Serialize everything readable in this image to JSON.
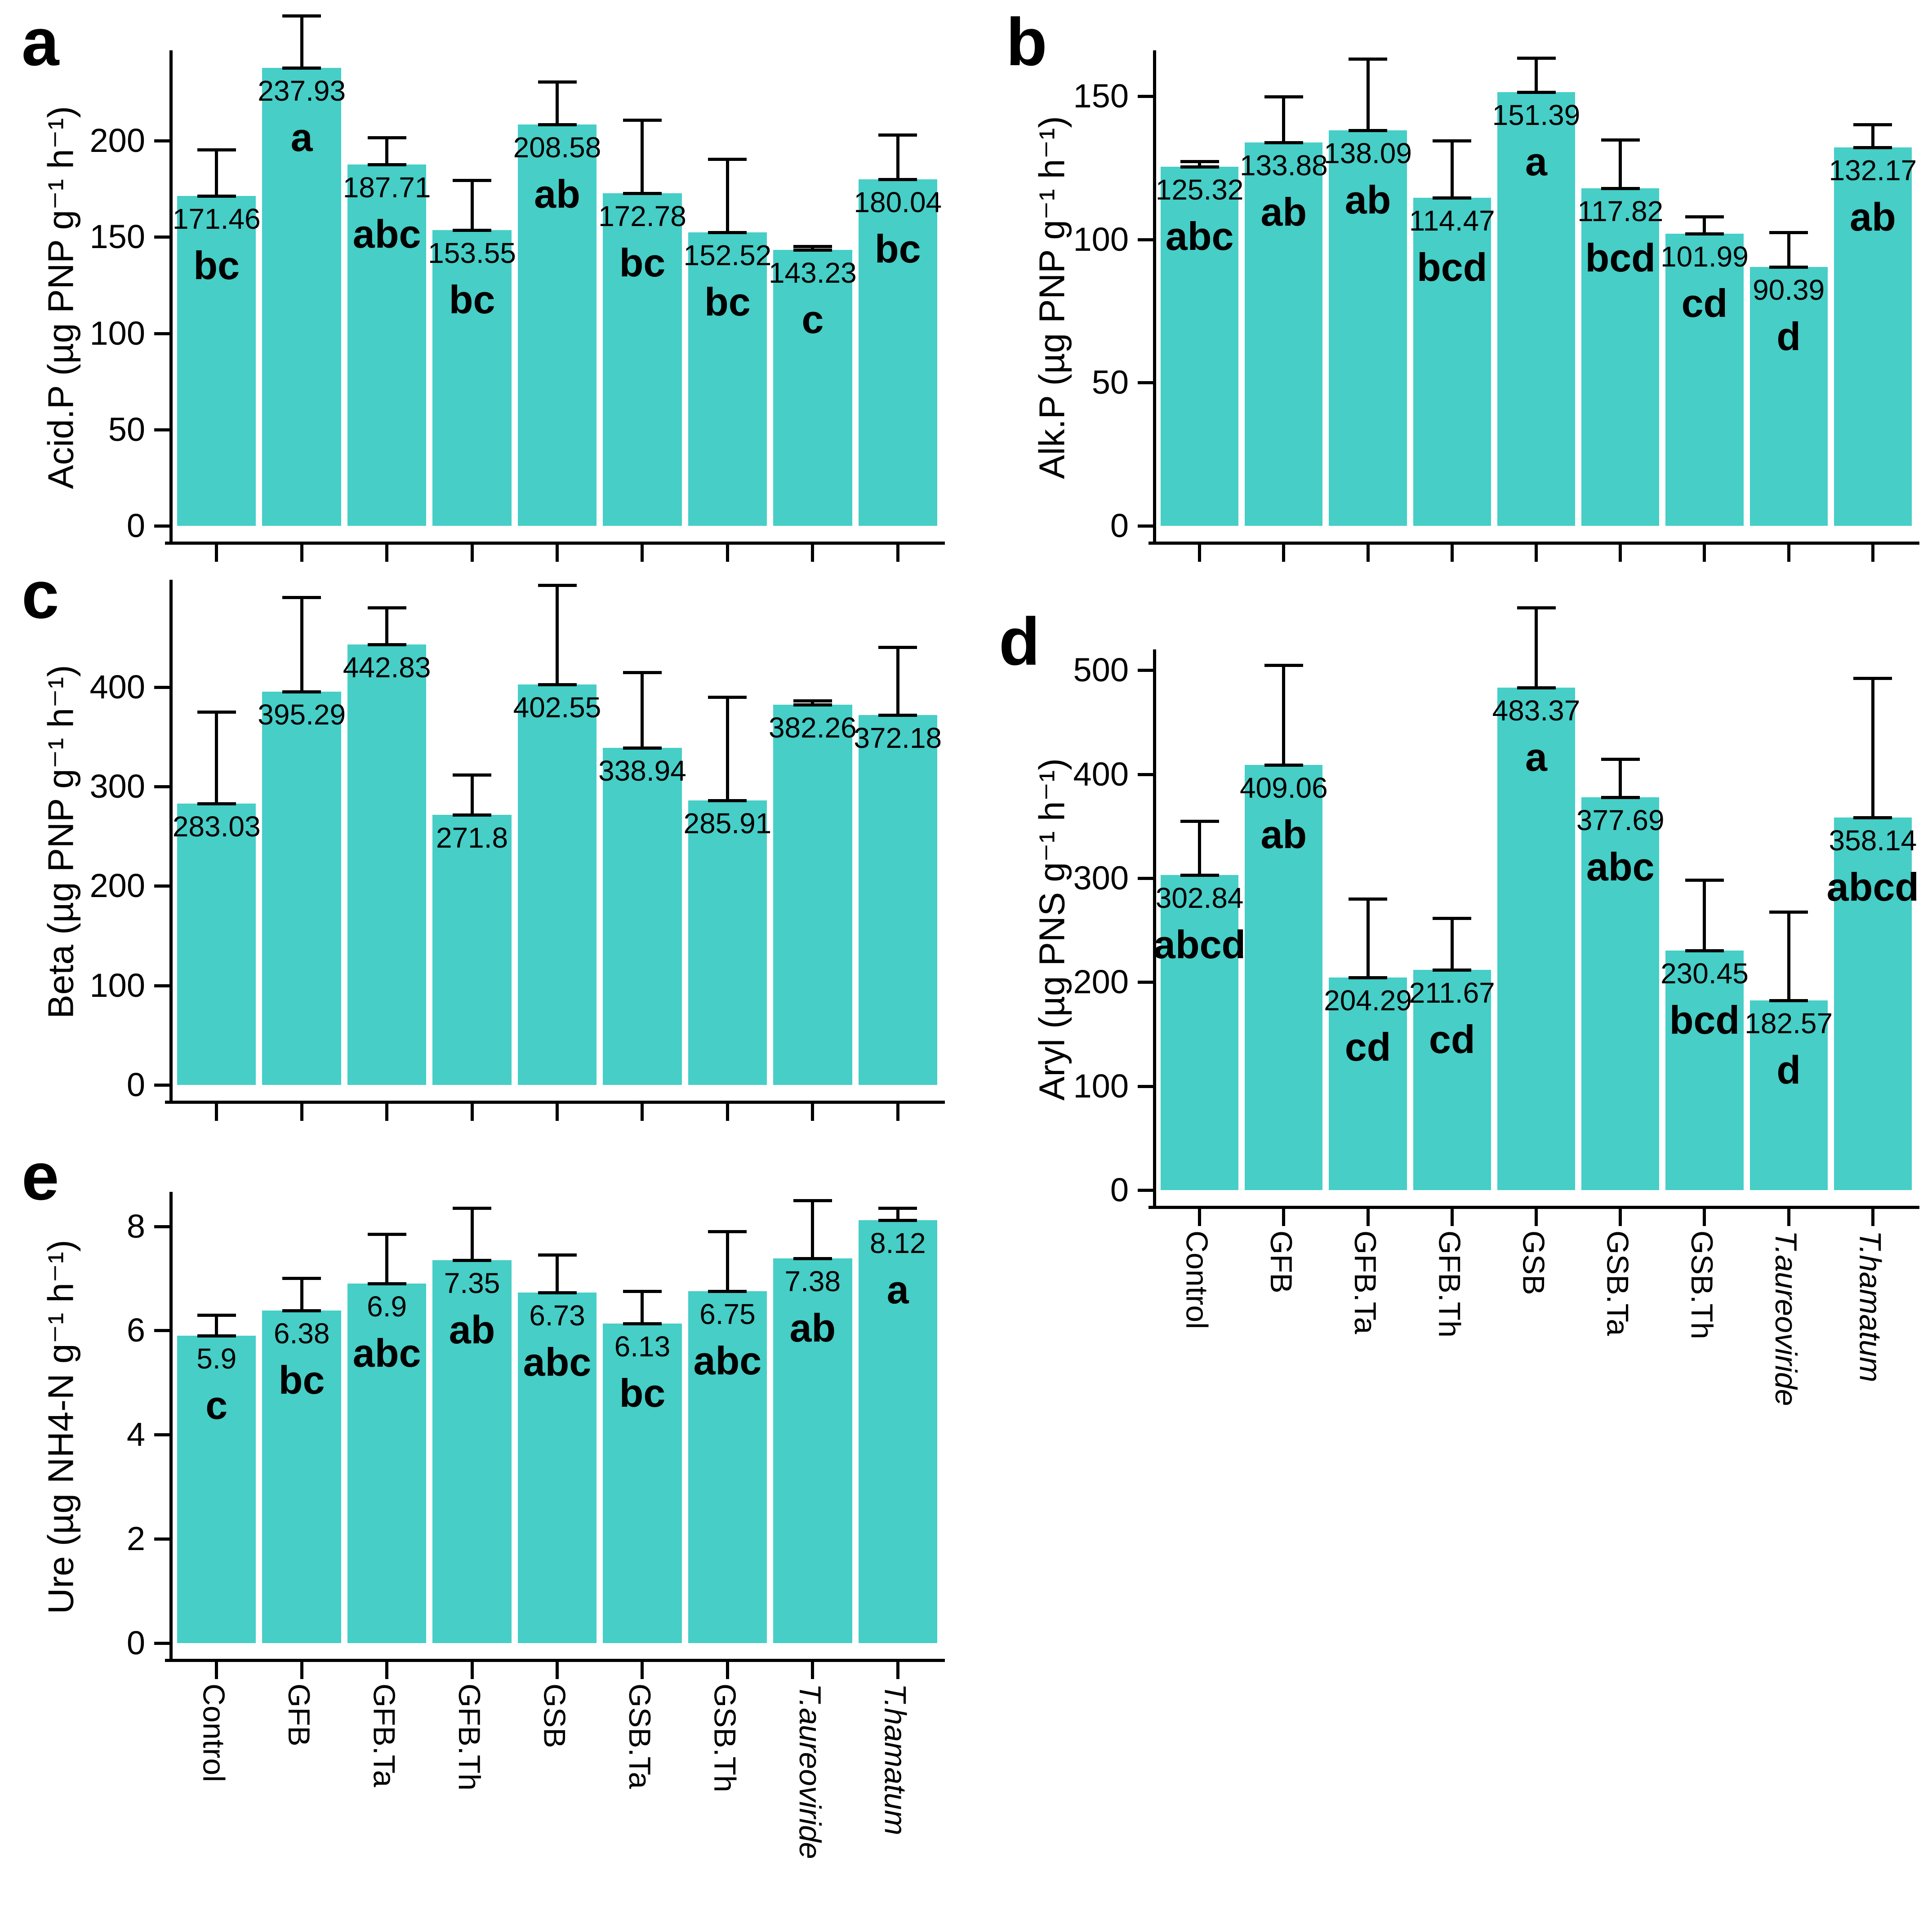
{
  "figure": {
    "background": "#ffffff",
    "bar_color": "#46CEC7",
    "axis_color": "#000000",
    "grid": false,
    "legend": false
  },
  "categories": [
    {
      "label": "Control",
      "italic": false
    },
    {
      "label": "GFB",
      "italic": false
    },
    {
      "label": "GFB.Ta",
      "italic": false
    },
    {
      "label": "GFB.Th",
      "italic": false
    },
    {
      "label": "GSB",
      "italic": false
    },
    {
      "label": "GSB.Ta",
      "italic": false
    },
    {
      "label": "GSB.Th",
      "italic": false
    },
    {
      "label": "T.aureoviride",
      "italic": true
    },
    {
      "label": "T.hamatum",
      "italic": true
    }
  ],
  "chart_data": [
    {
      "panel": "a",
      "type": "bar",
      "ylabel": "Acid.P (µg PNP g⁻¹ h⁻¹)",
      "yticks": [
        0,
        50,
        100,
        150,
        200
      ],
      "ylim": [
        0,
        247
      ],
      "values": [
        171.46,
        237.93,
        187.71,
        153.55,
        208.58,
        172.78,
        152.52,
        143.23,
        180.04
      ],
      "errors_upper": [
        24,
        27,
        14,
        26,
        22,
        38,
        38,
        2,
        23
      ],
      "sig_letters": [
        "bc",
        "a",
        "abc",
        "bc",
        "ab",
        "bc",
        "bc",
        "c",
        "bc"
      ],
      "show_x_labels": false
    },
    {
      "panel": "b",
      "type": "bar",
      "ylabel": "Alk.P (µg PNP g⁻¹ h⁻¹)",
      "yticks": [
        0,
        50,
        100,
        150
      ],
      "ylim": [
        0,
        166
      ],
      "values": [
        125.32,
        133.88,
        138.09,
        114.47,
        151.39,
        117.82,
        101.99,
        90.39,
        132.17
      ],
      "errors_upper": [
        2,
        16,
        25,
        20,
        12,
        17,
        6,
        12,
        8
      ],
      "sig_letters": [
        "abc",
        "ab",
        "ab",
        "bcd",
        "a",
        "bcd",
        "cd",
        "d",
        "ab"
      ],
      "show_x_labels": false
    },
    {
      "panel": "c",
      "type": "bar",
      "ylabel": "Beta (µg PNP g⁻¹ h⁻¹)",
      "yticks": [
        0,
        100,
        200,
        300,
        400
      ],
      "ylim": [
        0,
        508
      ],
      "values": [
        283.03,
        395.29,
        442.83,
        271.8,
        402.55,
        338.94,
        285.91,
        382.26,
        372.18
      ],
      "errors_upper": [
        92,
        95,
        37,
        40,
        100,
        76,
        104,
        4,
        68
      ],
      "sig_letters": null,
      "show_x_labels": false
    },
    {
      "panel": "d",
      "type": "bar",
      "ylabel": "Aryl (µg PNS g⁻¹ h⁻¹)",
      "yticks": [
        0,
        100,
        200,
        300,
        400,
        500
      ],
      "ylim": [
        0,
        520
      ],
      "values": [
        302.84,
        409.06,
        204.29,
        211.67,
        483.37,
        377.69,
        230.45,
        182.57,
        358.14
      ],
      "errors_upper": [
        52,
        96,
        76,
        50,
        77,
        37,
        68,
        85,
        134
      ],
      "sig_letters": [
        "abcd",
        "ab",
        "cd",
        "cd",
        "a",
        "abc",
        "bcd",
        "d",
        "abcd"
      ],
      "show_x_labels": true
    },
    {
      "panel": "e",
      "type": "bar",
      "ylabel": "Ure (µg NH4-N g⁻¹ h⁻¹)",
      "yticks": [
        0,
        2,
        4,
        6,
        8
      ],
      "ylim": [
        0,
        8.66
      ],
      "values": [
        5.9,
        6.38,
        6.9,
        7.35,
        6.73,
        6.13,
        6.75,
        7.38,
        8.12
      ],
      "errors_upper": [
        0.4,
        0.62,
        0.95,
        1.0,
        0.72,
        0.62,
        1.15,
        1.12,
        0.23
      ],
      "sig_letters": [
        "c",
        "bc",
        "abc",
        "ab",
        "abc",
        "bc",
        "abc",
        "ab",
        "a"
      ],
      "show_x_labels": true
    }
  ]
}
